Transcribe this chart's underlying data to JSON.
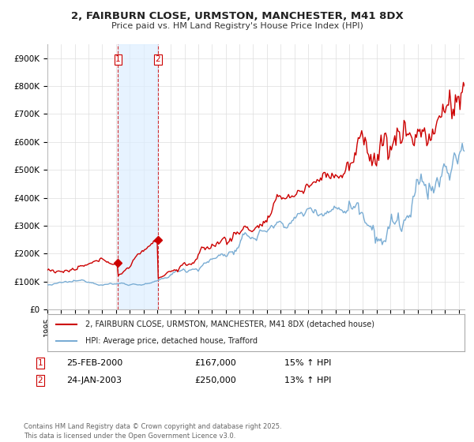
{
  "title": "2, FAIRBURN CLOSE, URMSTON, MANCHESTER, M41 8DX",
  "subtitle": "Price paid vs. HM Land Registry's House Price Index (HPI)",
  "line1_label": "2, FAIRBURN CLOSE, URMSTON, MANCHESTER, M41 8DX (detached house)",
  "line2_label": "HPI: Average price, detached house, Trafford",
  "line1_color": "#cc0000",
  "line2_color": "#7aadd4",
  "sale1_date": "25-FEB-2000",
  "sale1_price": "£167,000",
  "sale1_hpi": "15% ↑ HPI",
  "sale2_date": "24-JAN-2003",
  "sale2_price": "£250,000",
  "sale2_hpi": "13% ↑ HPI",
  "vline_color": "#cc0000",
  "shade_color": "#ddeeff",
  "footer": "Contains HM Land Registry data © Crown copyright and database right 2025.\nThis data is licensed under the Open Government Licence v3.0.",
  "ylim_min": 0,
  "ylim_max": 950000,
  "yticks": [
    0,
    100000,
    200000,
    300000,
    400000,
    500000,
    600000,
    700000,
    800000,
    900000
  ],
  "ytick_labels": [
    "£0",
    "£100K",
    "£200K",
    "£300K",
    "£400K",
    "£500K",
    "£600K",
    "£700K",
    "£800K",
    "£900K"
  ],
  "background_color": "#ffffff",
  "grid_color": "#dddddd"
}
